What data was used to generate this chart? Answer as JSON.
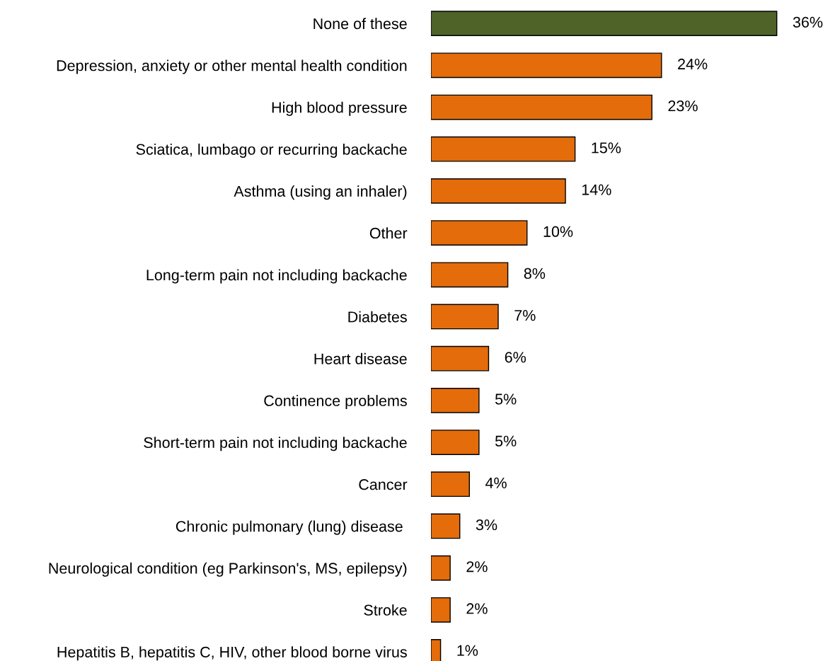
{
  "chart_data": {
    "type": "bar",
    "orientation": "horizontal",
    "categories": [
      "None of these",
      "Depression, anxiety or other mental health condition",
      "High blood pressure",
      "Sciatica, lumbago or recurring backache",
      "Asthma (using an inhaler)",
      "Other",
      "Long-term pain not including backache",
      "Diabetes",
      "Heart disease",
      "Continence problems",
      "Short-term pain not including backache",
      "Cancer",
      "Chronic pulmonary (lung) disease ",
      "Neurological condition (eg Parkinson's, MS, epilepsy)",
      "Stroke",
      "Hepatitis B, hepatitis C, HIV, other blood borne virus"
    ],
    "values": [
      36,
      24,
      23,
      15,
      14,
      10,
      8,
      7,
      6,
      5,
      5,
      4,
      3,
      2,
      2,
      1
    ],
    "value_labels": [
      "36%",
      "24%",
      "23%",
      "15%",
      "14%",
      "10%",
      "8%",
      "7%",
      "6%",
      "5%",
      "5%",
      "4%",
      "3%",
      "2%",
      "2%",
      "1%"
    ],
    "colors": [
      "#4f6228",
      "#e46c0a",
      "#e46c0a",
      "#e46c0a",
      "#e46c0a",
      "#e46c0a",
      "#e46c0a",
      "#e46c0a",
      "#e46c0a",
      "#e46c0a",
      "#e46c0a",
      "#e46c0a",
      "#e46c0a",
      "#e46c0a",
      "#e46c0a",
      "#e46c0a"
    ],
    "grid": false,
    "legend": false
  }
}
